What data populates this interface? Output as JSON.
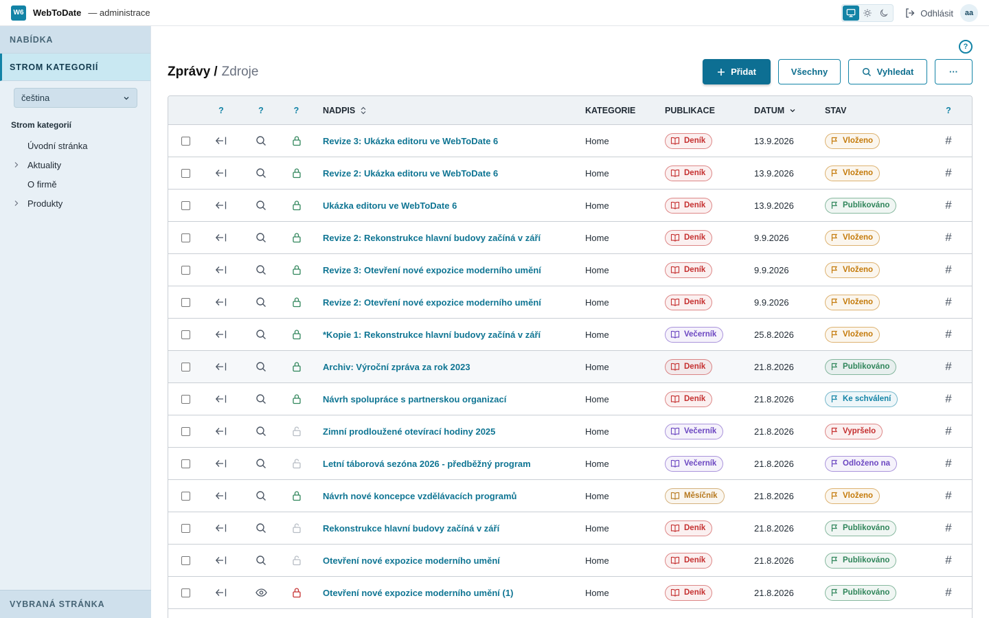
{
  "header": {
    "logo": "W6",
    "brand": "WebToDate",
    "subtitle": "— administrace",
    "logout": "Odhlásit",
    "avatar": "aa"
  },
  "sidebar": {
    "menu_label": "NABÍDKA",
    "tree_section_label": "STROM KATEGORIÍ",
    "language": "čeština",
    "tree_label": "Strom kategorií",
    "items": [
      {
        "label": "Úvodní stránka",
        "expandable": false
      },
      {
        "label": "Aktuality",
        "expandable": true
      },
      {
        "label": "O firmě",
        "expandable": false
      },
      {
        "label": "Produkty",
        "expandable": true
      }
    ],
    "selected_page_label": "VYBRANÁ STRÁNKA"
  },
  "page": {
    "help": "?",
    "title": "Zprávy",
    "separator": "/",
    "subtitle": "Zdroje"
  },
  "toolbar": {
    "add": "Přidat",
    "all": "Všechny",
    "search": "Vyhledat",
    "more": "···"
  },
  "table": {
    "headers": {
      "col_a": "?",
      "col_b": "?",
      "col_c": "?",
      "title": "NADPIS",
      "category": "KATEGORIE",
      "publication": "PUBLIKACE",
      "date": "DATUM",
      "state": "STAV",
      "col_end": "?"
    },
    "rows": [
      {
        "title": "Revize 3: Ukázka editoru ve WebToDate 6",
        "category": "Home",
        "publication": "Deník",
        "date": "13.9.2026",
        "state": "Vloženo",
        "lock": "locked",
        "view": "search"
      },
      {
        "title": "Revize 2: Ukázka editoru ve WebToDate 6",
        "category": "Home",
        "publication": "Deník",
        "date": "13.9.2026",
        "state": "Vloženo",
        "lock": "locked",
        "view": "search"
      },
      {
        "title": "Ukázka editoru ve WebToDate 6",
        "category": "Home",
        "publication": "Deník",
        "date": "13.9.2026",
        "state": "Publikováno",
        "lock": "locked",
        "view": "search"
      },
      {
        "title": "Revize 2: Rekonstrukce hlavní budovy začíná v září",
        "category": "Home",
        "publication": "Deník",
        "date": "9.9.2026",
        "state": "Vloženo",
        "lock": "locked",
        "view": "search"
      },
      {
        "title": "Revize 3: Otevření nové expozice moderního umění",
        "category": "Home",
        "publication": "Deník",
        "date": "9.9.2026",
        "state": "Vloženo",
        "lock": "locked",
        "view": "search"
      },
      {
        "title": "Revize 2: Otevření nové expozice moderního umění",
        "category": "Home",
        "publication": "Deník",
        "date": "9.9.2026",
        "state": "Vloženo",
        "lock": "locked",
        "view": "search"
      },
      {
        "title": "*Kopie 1: Rekonstrukce hlavní budovy začíná v září",
        "category": "Home",
        "publication": "Večerník",
        "date": "25.8.2026",
        "state": "Vloženo",
        "lock": "locked",
        "view": "search"
      },
      {
        "title": "Archiv: Výroční zpráva za rok 2023",
        "category": "Home",
        "publication": "Deník",
        "date": "21.8.2026",
        "state": "Publikováno",
        "lock": "locked",
        "view": "search",
        "highlight": true
      },
      {
        "title": "Návrh spolupráce s partnerskou organizací",
        "category": "Home",
        "publication": "Deník",
        "date": "21.8.2026",
        "state": "Ke schválení",
        "lock": "locked",
        "view": "search"
      },
      {
        "title": "Zimní prodloužené otevírací hodiny 2025",
        "category": "Home",
        "publication": "Večerník",
        "date": "21.8.2026",
        "state": "Vypršelo",
        "lock": "unlocked",
        "view": "search"
      },
      {
        "title": "Letní táborová sezóna 2026 - předběžný program",
        "category": "Home",
        "publication": "Večerník",
        "date": "21.8.2026",
        "state": "Odloženo na",
        "lock": "unlocked",
        "view": "search"
      },
      {
        "title": "Návrh nové koncepce vzdělávacích programů",
        "category": "Home",
        "publication": "Měsíčník",
        "date": "21.8.2026",
        "state": "Vloženo",
        "lock": "locked",
        "view": "search"
      },
      {
        "title": "Rekonstrukce hlavní budovy začíná v září",
        "category": "Home",
        "publication": "Deník",
        "date": "21.8.2026",
        "state": "Publikováno",
        "lock": "unlocked",
        "view": "search"
      },
      {
        "title": "Otevření nové expozice moderního umění",
        "category": "Home",
        "publication": "Deník",
        "date": "21.8.2026",
        "state": "Publikováno",
        "lock": "unlocked",
        "view": "search"
      },
      {
        "title": "Otevření nové expozice moderního umění (1)",
        "category": "Home",
        "publication": "Deník",
        "date": "21.8.2026",
        "state": "Publikováno",
        "lock": "locked-red",
        "view": "eye"
      }
    ]
  },
  "colors": {
    "accent": "#1283a6",
    "Deník": "#c53030",
    "Večerník": "#6b46c1",
    "Měsíčník": "#b7791f",
    "Vloženo": "#c47a0a",
    "Publikováno": "#2f855a",
    "Ke schválení": "#1283a6",
    "Vypršelo": "#c53030",
    "Odloženo na": "#6b46c1"
  }
}
